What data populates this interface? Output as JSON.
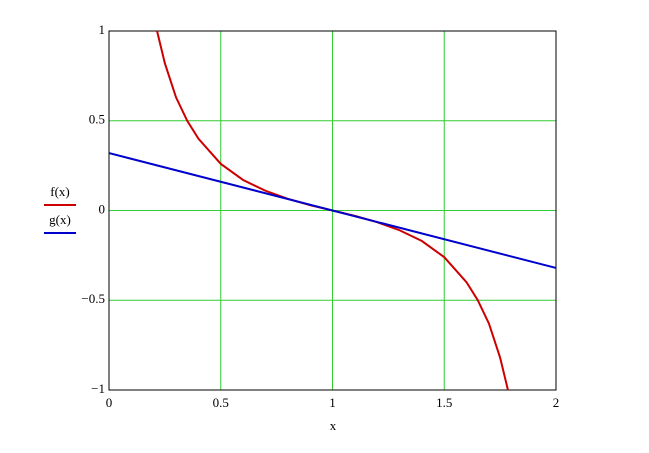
{
  "chart_data": {
    "type": "line",
    "xlabel": "x",
    "x": [
      0.215,
      0.25,
      0.3,
      0.35,
      0.4,
      0.5,
      0.6,
      0.7,
      0.8,
      0.9,
      1,
      1.1,
      1.2,
      1.3,
      1.4,
      1.5,
      1.6,
      1.65,
      1.7,
      1.75,
      1.785
    ],
    "series": [
      {
        "name": "f(x)",
        "color": "#cc0000",
        "values": [
          1,
          0.82,
          0.63,
          0.5,
          0.4,
          0.26,
          0.17,
          0.11,
          0.065,
          0.03,
          0,
          -0.03,
          -0.065,
          -0.11,
          -0.17,
          -0.26,
          -0.4,
          -0.5,
          -0.63,
          -0.82,
          -1
        ]
      },
      {
        "name": "g(x)",
        "color": "#0000cc",
        "x": [
          0,
          2
        ],
        "values": [
          0.32,
          -0.32
        ]
      }
    ],
    "xlim": [
      0,
      2
    ],
    "ylim": [
      -1,
      1
    ],
    "xticks": [
      0,
      0.5,
      1,
      1.5,
      2
    ],
    "yticks": [
      {
        "value": -1,
        "label": "−1"
      },
      {
        "value": -0.5,
        "label": "−0.5"
      },
      0,
      0.5,
      1
    ],
    "grid": true,
    "grid_color": "#33cc33"
  }
}
